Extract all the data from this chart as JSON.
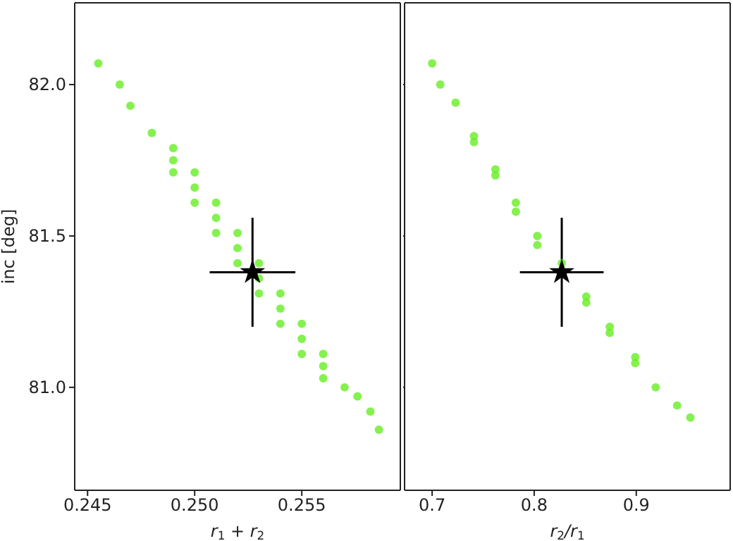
{
  "chart_data": [
    {
      "type": "scatter",
      "xlabel": "r$_{1}$ + r$_{2}$",
      "ylabel": "inc [deg]",
      "xlim": [
        0.2444,
        0.2596
      ],
      "xticks": [
        {
          "value": 0.245,
          "label": "0.245"
        },
        {
          "value": 0.25,
          "label": "0.250"
        },
        {
          "value": 0.255,
          "label": "0.255"
        }
      ],
      "ylim": [
        80.66,
        82.27
      ],
      "yticks": [
        {
          "value": 81.0,
          "label": "81.0"
        },
        {
          "value": 81.5,
          "label": "81.5"
        },
        {
          "value": 82.0,
          "label": "82.0"
        }
      ],
      "series": [
        {
          "marker": "circle",
          "color": "#66ee22",
          "x": [
            0.2455,
            0.2465,
            0.247,
            0.248,
            0.249,
            0.25,
            0.251,
            0.252,
            0.253,
            0.254,
            0.255,
            0.256,
            0.257,
            0.2576,
            0.2582,
            0.2586,
            0.249,
            0.25,
            0.251,
            0.252,
            0.253,
            0.254,
            0.255,
            0.256,
            0.249,
            0.25,
            0.251,
            0.252,
            0.253,
            0.254,
            0.255,
            0.256
          ],
          "values": [
            82.07,
            82.0,
            81.93,
            81.84,
            81.75,
            81.66,
            81.56,
            81.46,
            81.36,
            81.26,
            81.16,
            81.07,
            81.0,
            80.97,
            80.92,
            80.86,
            81.79,
            81.71,
            81.61,
            81.51,
            81.41,
            81.31,
            81.21,
            81.11,
            81.71,
            81.61,
            81.51,
            81.41,
            81.31,
            81.21,
            81.11,
            81.03
          ]
        },
        {
          "marker": "star",
          "color": "#000000",
          "x": [
            0.2527
          ],
          "values": [
            81.38
          ],
          "errors": [
            0.18
          ],
          "xerrors": [
            0.002
          ]
        }
      ]
    },
    {
      "type": "scatter",
      "xlabel": "r$_{2}$/r$_{1}$",
      "xlim": [
        0.673,
        0.992
      ],
      "xticks": [
        0.7,
        0.8,
        0.9
      ],
      "ylim": [
        80.66,
        82.27
      ],
      "yticks": [
        {
          "value": 81.0,
          "label": null
        },
        {
          "value": 81.5,
          "label": null
        },
        {
          "value": 82.0,
          "label": null
        }
      ],
      "tick_labels": "x",
      "series": [
        {
          "marker": "circle",
          "color": "#66ee22",
          "x": [
            0.7,
            0.708,
            0.723,
            0.741,
            0.762,
            0.782,
            0.803,
            0.851,
            0.874,
            0.899,
            0.919,
            0.94,
            0.953,
            0.741,
            0.762,
            0.782,
            0.803,
            0.827,
            0.851,
            0.874,
            0.899
          ],
          "values": [
            82.07,
            82.0,
            81.94,
            81.81,
            81.7,
            81.58,
            81.47,
            81.28,
            81.18,
            81.08,
            81.0,
            80.94,
            80.9,
            81.83,
            81.72,
            81.61,
            81.5,
            81.41,
            81.3,
            81.2,
            81.1
          ]
        },
        {
          "marker": "star",
          "color": "#000000",
          "x": [
            0.827
          ],
          "values": [
            81.38
          ],
          "errors": [
            0.18
          ],
          "xerrors": [
            0.041
          ]
        }
      ]
    }
  ]
}
